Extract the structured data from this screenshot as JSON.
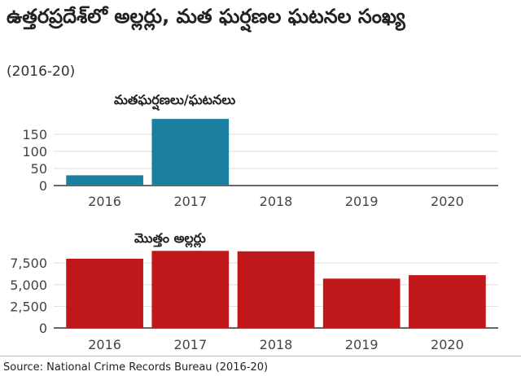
{
  "title": "ఉత్తరప్రదేశ్‌లో అల్లర్లు, మత ఘర్షణల ఘటనల సంఖ్య",
  "subtitle": "(2016-20)",
  "source": "Source: National Crime Records Bureau (2016-20)",
  "chart_data": [
    {
      "type": "bar",
      "title": "మతఘర్షణలు/ఘటనలు",
      "categories": [
        "2016",
        "2017",
        "2018",
        "2019",
        "2020"
      ],
      "values": [
        30,
        195,
        0,
        0,
        0
      ],
      "ylim": [
        0,
        200
      ],
      "yticks": [
        0,
        50,
        100,
        150
      ],
      "ytick_labels": [
        "0",
        "50",
        "100",
        "150"
      ],
      "color": "#1b7fa0",
      "grid": true
    },
    {
      "type": "bar",
      "title": "మొత్తం అల్లర్లు",
      "categories": [
        "2016",
        "2017",
        "2018",
        "2019",
        "2020"
      ],
      "values": [
        8000,
        8900,
        8850,
        5700,
        6100
      ],
      "ylim": [
        0,
        9300
      ],
      "yticks": [
        0,
        2500,
        5000,
        7500
      ],
      "ytick_labels": [
        "0",
        "2,500",
        "5,000",
        "7,500"
      ],
      "color": "#c0171b",
      "grid": true
    }
  ]
}
